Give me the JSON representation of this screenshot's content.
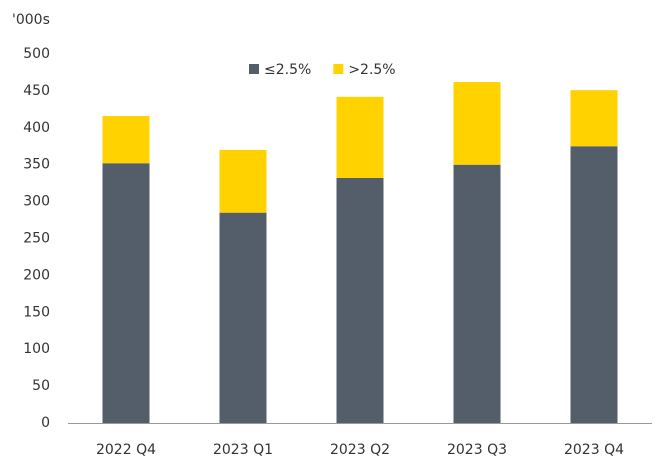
{
  "chart_data": {
    "type": "stacked_bar",
    "y_axis_label": "'000s",
    "categories": [
      "2022 Q4",
      "2023 Q1",
      "2023 Q2",
      "2023 Q3",
      "2023 Q4"
    ],
    "series": [
      {
        "name": "≤2.5%",
        "color": "#545e6a",
        "values": [
          352,
          285,
          332,
          350,
          375
        ]
      },
      {
        "name": ">2.5%",
        "color": "#ffd200",
        "values": [
          64,
          85,
          110,
          112,
          76
        ]
      }
    ],
    "ylim": [
      0,
      500
    ],
    "yticks": [
      0,
      50,
      100,
      150,
      200,
      250,
      300,
      350,
      400,
      450,
      500
    ],
    "grid": false,
    "legend": "top"
  }
}
